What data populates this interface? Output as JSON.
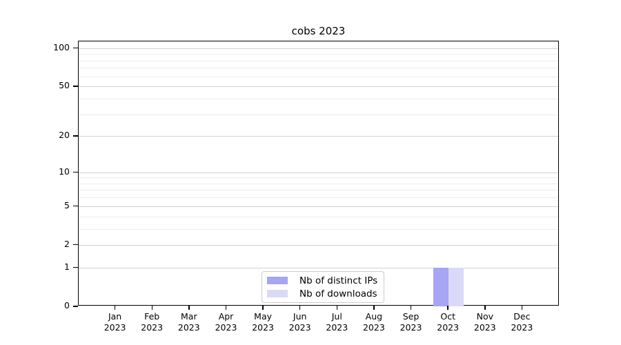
{
  "chart_data": {
    "type": "bar",
    "title": "cobs 2023",
    "categories": [
      "Jan 2023",
      "Feb 2023",
      "Mar 2023",
      "Apr 2023",
      "May 2023",
      "Jun 2023",
      "Jul 2023",
      "Aug 2023",
      "Sep 2023",
      "Oct 2023",
      "Nov 2023",
      "Dec 2023"
    ],
    "series": [
      {
        "name": "Nb of distinct IPs",
        "color": "#a6a6f4",
        "values": [
          0,
          0,
          0,
          0,
          0,
          0,
          0,
          0,
          0,
          1,
          0,
          0
        ]
      },
      {
        "name": "Nb of downloads",
        "color": "#dadaf8",
        "values": [
          0,
          0,
          0,
          0,
          0,
          0,
          0,
          0,
          0,
          1,
          0,
          0
        ]
      }
    ],
    "y_axis": {
      "scale": "log1p",
      "major_ticks": [
        0,
        1,
        2,
        5,
        10,
        20,
        50,
        100
      ],
      "minor_ticks": [
        3,
        4,
        6,
        7,
        8,
        9,
        30,
        40,
        60,
        70,
        80,
        90
      ],
      "ylim": [
        0,
        113
      ]
    },
    "grid": {
      "major_color": "#d2d2d2",
      "minor_color": "#ededed"
    },
    "legend": {
      "position": "lower center"
    }
  }
}
